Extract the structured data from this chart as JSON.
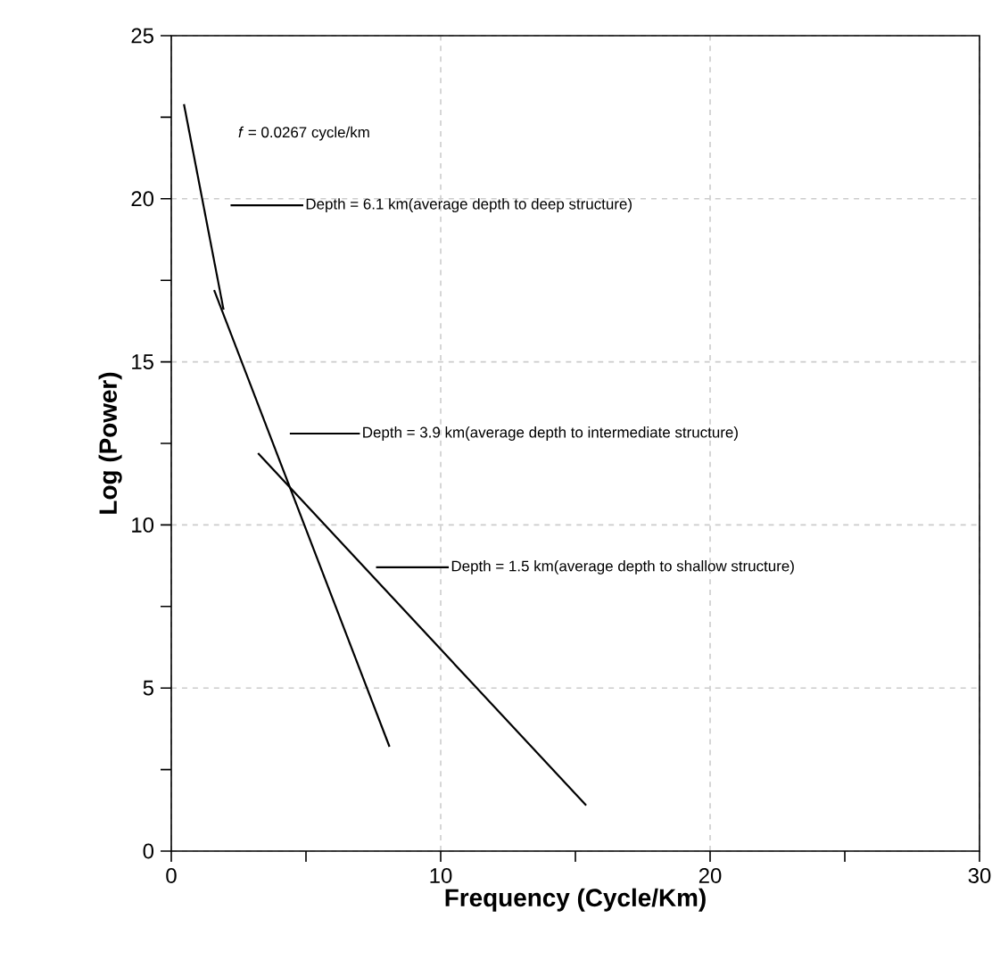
{
  "chart_data": {
    "type": "line",
    "xlabel": "Frequency (Cycle/Km)",
    "ylabel": "Log (Power)",
    "xlim": [
      0,
      30
    ],
    "ylim": [
      0,
      25
    ],
    "xticks": [
      0,
      10,
      20,
      30
    ],
    "yticks": [
      0,
      5,
      10,
      15,
      20,
      25
    ],
    "grid": true,
    "line_style": "solid",
    "marker": "none",
    "series": [
      {
        "color": "#000000",
        "x": [
          0.47,
          1.94
        ],
        "values": [
          22.9,
          16.6
        ]
      },
      {
        "color": "#000000",
        "x": [
          1.59,
          8.1
        ],
        "values": [
          17.2,
          3.2
        ]
      },
      {
        "color": "#000000",
        "x": [
          3.22,
          15.4
        ],
        "values": [
          12.2,
          1.4
        ]
      },
      {
        "name": "Depth = 6.1 km(average depth to deep structure)",
        "color": "#000000",
        "x": [
          2.2,
          4.9
        ],
        "values": [
          19.8,
          19.8
        ]
      },
      {
        "name": "Depth = 3.9 km(average depth to intermediate structure)",
        "color": "#000000",
        "x": [
          4.4,
          7.0
        ],
        "values": [
          12.8,
          12.8
        ]
      },
      {
        "name": "Depth = 1.5 km(average depth to shallow structure)",
        "color": "#000000",
        "x": [
          7.6,
          10.3
        ],
        "values": [
          8.7,
          8.7
        ]
      }
    ],
    "annotations": [
      "*f* = 0.0267 cycle/km"
    ]
  }
}
